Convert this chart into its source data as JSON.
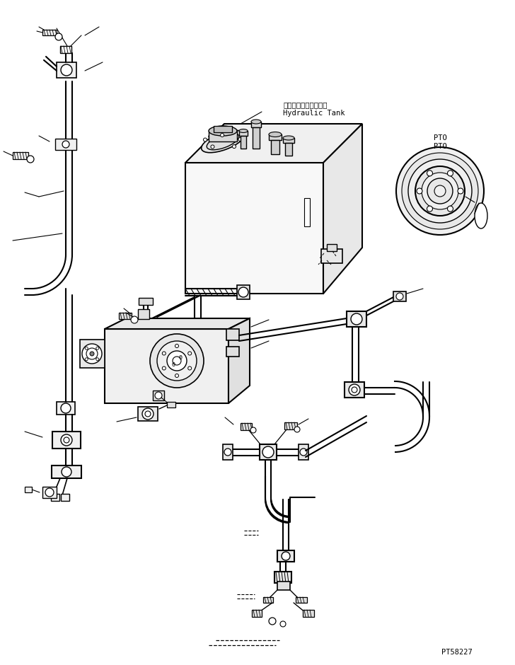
{
  "part_number": "PT58227",
  "label_hydraulic_tank_jp": "ハイドロリックタンク",
  "label_hydraulic_tank_en": "Hydraulic Tank",
  "label_pto_jp": "PTO",
  "label_pto_en": "PTO",
  "bg_color": "#ffffff",
  "line_color": "#000000",
  "fig_width": 7.28,
  "fig_height": 9.4,
  "dpi": 100
}
